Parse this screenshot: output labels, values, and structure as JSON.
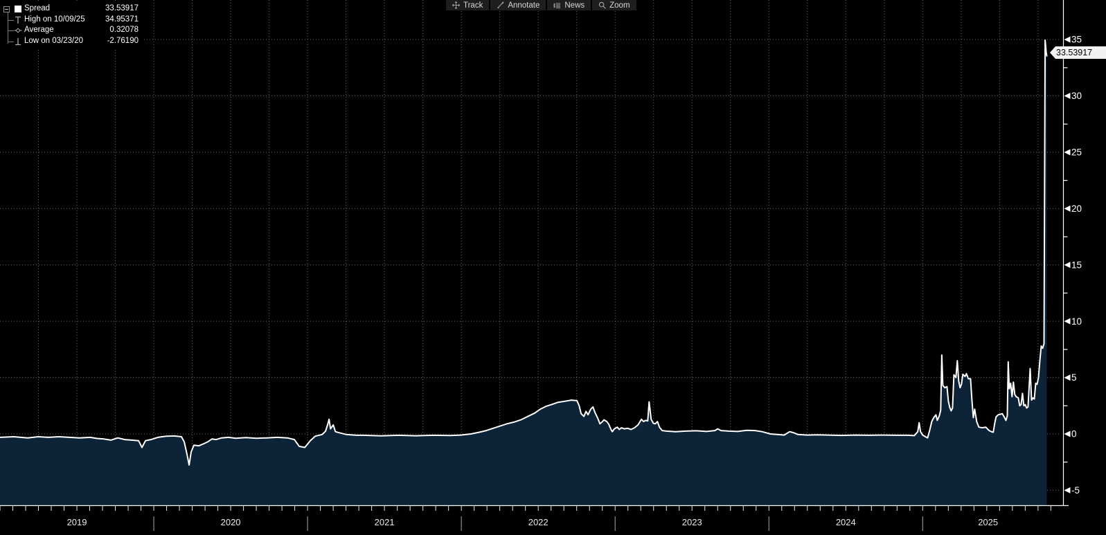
{
  "toolbar": {
    "items": [
      {
        "label": "Track"
      },
      {
        "label": "Annotate"
      },
      {
        "label": "News"
      },
      {
        "label": "Zoom"
      }
    ]
  },
  "legend": {
    "rows": [
      {
        "label": "Spread",
        "value": "33.53917"
      },
      {
        "label": "High on 10/09/25",
        "value": "34.95371"
      },
      {
        "label": "Average",
        "value": "0.32078"
      },
      {
        "label": "Low on 03/23/20",
        "value": "-2.76190"
      }
    ]
  },
  "chart_data": {
    "type": "area",
    "title": "Spread",
    "series_name": "Spread",
    "last_value_label": "33.53917",
    "stats": {
      "last": 33.53917,
      "high": {
        "date": "10/09/25",
        "value": 34.95371
      },
      "average": 0.32078,
      "low": {
        "date": "03/23/20",
        "value": -2.7619
      }
    },
    "xlim": [
      2019.0,
      2025.915
    ],
    "ylim": [
      -6.39,
      38.51
    ],
    "y_ticks": [
      -5,
      0,
      5,
      10,
      15,
      20,
      25,
      30,
      35
    ],
    "y_minor_ticks": [
      -2.5,
      2.5,
      7.5,
      12.5,
      17.5,
      22.5,
      27.5,
      32.5
    ],
    "x_ticks": [
      2019,
      2020,
      2021,
      2022,
      2023,
      2024,
      2025
    ],
    "grid": "dotted",
    "legend_position": "top-left",
    "colors": {
      "background": "#000000",
      "line": "#ffffff",
      "fill": "#0d2338",
      "grid": "#6b6b6b",
      "axis": "#ffffff",
      "tick_label": "#ffffff",
      "year_label": "#e8e8e8",
      "separator": "#8f8f8f",
      "tag_bg": "#f2f2f2",
      "tag_text": "#000000"
    },
    "points": [
      [
        2019.0,
        -0.3
      ],
      [
        2019.09,
        -0.25
      ],
      [
        2019.18,
        -0.35
      ],
      [
        2019.248,
        -0.25
      ],
      [
        2019.315,
        -0.3
      ],
      [
        2019.383,
        -0.25
      ],
      [
        2019.45,
        -0.3
      ],
      [
        2019.518,
        -0.35
      ],
      [
        2019.586,
        -0.3
      ],
      [
        2019.631,
        -0.4
      ],
      [
        2019.676,
        -0.45
      ],
      [
        2019.721,
        -0.55
      ],
      [
        2019.766,
        -0.35
      ],
      [
        2019.811,
        -0.5
      ],
      [
        2019.856,
        -0.55
      ],
      [
        2019.901,
        -0.6
      ],
      [
        2019.923,
        -1.2
      ],
      [
        2019.946,
        -0.6
      ],
      [
        2019.982,
        -0.5
      ],
      [
        2020.027,
        -0.3
      ],
      [
        2020.081,
        -0.2
      ],
      [
        2020.135,
        -0.18
      ],
      [
        2020.18,
        -0.25
      ],
      [
        2020.198,
        -0.7
      ],
      [
        2020.216,
        -1.8
      ],
      [
        2020.23,
        -2.76
      ],
      [
        2020.243,
        -1.6
      ],
      [
        2020.261,
        -1.0
      ],
      [
        2020.293,
        -1.05
      ],
      [
        2020.32,
        -0.9
      ],
      [
        2020.351,
        -0.7
      ],
      [
        2020.378,
        -0.45
      ],
      [
        2020.405,
        -0.5
      ],
      [
        2020.441,
        -0.35
      ],
      [
        2020.486,
        -0.3
      ],
      [
        2020.532,
        -0.38
      ],
      [
        2020.599,
        -0.32
      ],
      [
        2020.667,
        -0.38
      ],
      [
        2020.734,
        -0.35
      ],
      [
        2020.802,
        -0.3
      ],
      [
        2020.869,
        -0.35
      ],
      [
        2020.914,
        -0.5
      ],
      [
        2020.946,
        -1.1
      ],
      [
        2020.982,
        -1.2
      ],
      [
        2021.018,
        -0.6
      ],
      [
        2021.05,
        -0.2
      ],
      [
        2021.095,
        -0.05
      ],
      [
        2021.117,
        0.25
      ],
      [
        2021.131,
        0.85
      ],
      [
        2021.14,
        1.3
      ],
      [
        2021.149,
        0.45
      ],
      [
        2021.167,
        0.8
      ],
      [
        2021.181,
        0.2
      ],
      [
        2021.207,
        0.1
      ],
      [
        2021.252,
        -0.05
      ],
      [
        2021.32,
        -0.12
      ],
      [
        2021.365,
        -0.12
      ],
      [
        2021.477,
        -0.17
      ],
      [
        2021.59,
        -0.12
      ],
      [
        2021.703,
        -0.16
      ],
      [
        2021.815,
        -0.12
      ],
      [
        2021.928,
        -0.14
      ],
      [
        2021.995,
        -0.1
      ],
      [
        2022.063,
        0.0
      ],
      [
        2022.117,
        0.15
      ],
      [
        2022.162,
        0.3
      ],
      [
        2022.207,
        0.5
      ],
      [
        2022.252,
        0.7
      ],
      [
        2022.297,
        0.9
      ],
      [
        2022.342,
        1.05
      ],
      [
        2022.387,
        1.25
      ],
      [
        2022.432,
        1.55
      ],
      [
        2022.477,
        1.85
      ],
      [
        2022.514,
        2.2
      ],
      [
        2022.55,
        2.45
      ],
      [
        2022.586,
        2.6
      ],
      [
        2022.626,
        2.8
      ],
      [
        2022.671,
        2.9
      ],
      [
        2022.716,
        3.0
      ],
      [
        2022.752,
        2.95
      ],
      [
        2022.766,
        2.5
      ],
      [
        2022.779,
        1.8
      ],
      [
        2022.797,
        1.55
      ],
      [
        2022.811,
        2.0
      ],
      [
        2022.824,
        1.7
      ],
      [
        2022.842,
        2.2
      ],
      [
        2022.856,
        2.4
      ],
      [
        2022.869,
        1.9
      ],
      [
        2022.887,
        1.4
      ],
      [
        2022.901,
        0.9
      ],
      [
        2022.914,
        1.05
      ],
      [
        2022.928,
        1.25
      ],
      [
        2022.946,
        1.1
      ],
      [
        2022.959,
        0.85
      ],
      [
        2022.973,
        0.4
      ],
      [
        2022.982,
        0.2
      ],
      [
        2022.995,
        0.45
      ],
      [
        2023.014,
        0.6
      ],
      [
        2023.027,
        0.4
      ],
      [
        2023.041,
        0.55
      ],
      [
        2023.059,
        0.45
      ],
      [
        2023.081,
        0.5
      ],
      [
        2023.104,
        0.4
      ],
      [
        2023.126,
        0.55
      ],
      [
        2023.149,
        0.8
      ],
      [
        2023.171,
        1.3
      ],
      [
        2023.185,
        1.1
      ],
      [
        2023.198,
        1.2
      ],
      [
        2023.212,
        1.15
      ],
      [
        2023.221,
        2.85
      ],
      [
        2023.234,
        1.3
      ],
      [
        2023.248,
        0.95
      ],
      [
        2023.261,
        0.9
      ],
      [
        2023.275,
        1.1
      ],
      [
        2023.288,
        0.6
      ],
      [
        2023.306,
        0.3
      ],
      [
        2023.333,
        0.25
      ],
      [
        2023.392,
        0.2
      ],
      [
        2023.459,
        0.25
      ],
      [
        2023.527,
        0.28
      ],
      [
        2023.595,
        0.22
      ],
      [
        2023.649,
        0.3
      ],
      [
        2023.667,
        0.45
      ],
      [
        2023.689,
        0.3
      ],
      [
        2023.739,
        0.25
      ],
      [
        2023.797,
        0.22
      ],
      [
        2023.856,
        0.32
      ],
      [
        2023.91,
        0.3
      ],
      [
        2023.955,
        0.2
      ],
      [
        2023.982,
        0.1
      ],
      [
        2024.009,
        0.0
      ],
      [
        2024.054,
        -0.05
      ],
      [
        2024.099,
        -0.1
      ],
      [
        2024.135,
        0.2
      ],
      [
        2024.162,
        0.1
      ],
      [
        2024.189,
        -0.05
      ],
      [
        2024.248,
        -0.1
      ],
      [
        2024.315,
        -0.08
      ],
      [
        2024.383,
        -0.1
      ],
      [
        2024.473,
        -0.13
      ],
      [
        2024.563,
        -0.1
      ],
      [
        2024.653,
        -0.12
      ],
      [
        2024.743,
        -0.1
      ],
      [
        2024.833,
        -0.12
      ],
      [
        2024.901,
        -0.12
      ],
      [
        2024.946,
        -0.15
      ],
      [
        2024.968,
        0.2
      ],
      [
        2024.977,
        1.0
      ],
      [
        2024.986,
        0.2
      ],
      [
        2025.0,
        -0.1
      ],
      [
        2025.018,
        -0.25
      ],
      [
        2025.032,
        -0.35
      ],
      [
        2025.045,
        0.3
      ],
      [
        2025.059,
        1.1
      ],
      [
        2025.072,
        1.45
      ],
      [
        2025.086,
        1.7
      ],
      [
        2025.095,
        1.2
      ],
      [
        2025.108,
        1.6
      ],
      [
        2025.117,
        2.1
      ],
      [
        2025.124,
        7.0
      ],
      [
        2025.131,
        4.3
      ],
      [
        2025.144,
        4.1
      ],
      [
        2025.158,
        4.2
      ],
      [
        2025.167,
        2.9
      ],
      [
        2025.176,
        2.35
      ],
      [
        2025.185,
        2.05
      ],
      [
        2025.194,
        2.3
      ],
      [
        2025.203,
        5.25
      ],
      [
        2025.216,
        5.0
      ],
      [
        2025.225,
        6.5
      ],
      [
        2025.234,
        4.7
      ],
      [
        2025.243,
        4.1
      ],
      [
        2025.252,
        4.4
      ],
      [
        2025.261,
        5.3
      ],
      [
        2025.275,
        5.1
      ],
      [
        2025.284,
        5.35
      ],
      [
        2025.297,
        4.9
      ],
      [
        2025.311,
        4.9
      ],
      [
        2025.32,
        3.0
      ],
      [
        2025.329,
        1.45
      ],
      [
        2025.338,
        2.2
      ],
      [
        2025.351,
        1.1
      ],
      [
        2025.365,
        0.6
      ],
      [
        2025.387,
        0.55
      ],
      [
        2025.41,
        0.6
      ],
      [
        2025.432,
        0.3
      ],
      [
        2025.45,
        0.18
      ],
      [
        2025.459,
        0.15
      ],
      [
        2025.468,
        0.9
      ],
      [
        2025.477,
        1.5
      ],
      [
        2025.491,
        1.7
      ],
      [
        2025.505,
        1.75
      ],
      [
        2025.518,
        1.8
      ],
      [
        2025.532,
        1.45
      ],
      [
        2025.541,
        1.2
      ],
      [
        2025.55,
        1.6
      ],
      [
        2025.556,
        6.4
      ],
      [
        2025.563,
        4.0
      ],
      [
        2025.572,
        4.5
      ],
      [
        2025.581,
        3.3
      ],
      [
        2025.59,
        4.6
      ],
      [
        2025.599,
        3.5
      ],
      [
        2025.608,
        3.3
      ],
      [
        2025.622,
        3.2
      ],
      [
        2025.631,
        2.5
      ],
      [
        2025.64,
        2.6
      ],
      [
        2025.649,
        3.6
      ],
      [
        2025.658,
        2.5
      ],
      [
        2025.667,
        2.6
      ],
      [
        2025.676,
        2.3
      ],
      [
        2025.685,
        2.4
      ],
      [
        2025.699,
        5.8
      ],
      [
        2025.708,
        3.0
      ],
      [
        2025.717,
        3.2
      ],
      [
        2025.726,
        3.1
      ],
      [
        2025.735,
        4.5
      ],
      [
        2025.744,
        4.4
      ],
      [
        2025.753,
        5.0
      ],
      [
        2025.762,
        6.5
      ],
      [
        2025.771,
        7.8
      ],
      [
        2025.78,
        7.6
      ],
      [
        2025.789,
        8.0
      ],
      [
        2025.796,
        34.95
      ],
      [
        2025.803,
        33.9
      ],
      [
        2025.807,
        33.54
      ]
    ]
  }
}
